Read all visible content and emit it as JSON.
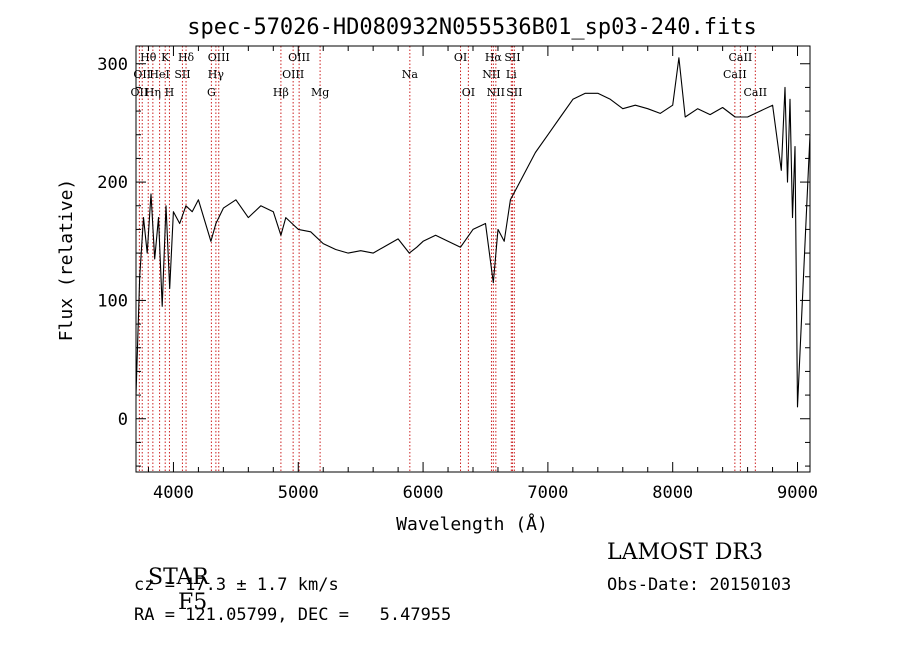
{
  "chart_data": {
    "type": "line",
    "title": "spec-57026-HD080932N055536B01_sp03-240.fits",
    "xlabel": "Wavelength (Å)",
    "ylabel": "Flux (relative)",
    "xlim": [
      3700,
      9100
    ],
    "ylim": [
      -45,
      315
    ],
    "xticks": [
      4000,
      5000,
      6000,
      7000,
      8000,
      9000
    ],
    "yticks": [
      0,
      100,
      200,
      300
    ],
    "grid": false,
    "series": [
      {
        "color": "#000000",
        "x": [
          3700,
          3730,
          3760,
          3790,
          3820,
          3850,
          3880,
          3910,
          3940,
          3970,
          4000,
          4050,
          4100,
          4150,
          4200,
          4300,
          4340,
          4400,
          4500,
          4600,
          4700,
          4800,
          4861,
          4900,
          5000,
          5100,
          5200,
          5300,
          5400,
          5500,
          5600,
          5700,
          5800,
          5890,
          5950,
          6000,
          6100,
          6200,
          6300,
          6400,
          6500,
          6563,
          6600,
          6650,
          6700,
          6750,
          6800,
          6900,
          7000,
          7100,
          7200,
          7300,
          7400,
          7500,
          7600,
          7700,
          7800,
          7900,
          8000,
          8050,
          8100,
          8200,
          8300,
          8400,
          8500,
          8600,
          8700,
          8800,
          8870,
          8900,
          8920,
          8940,
          8960,
          8980,
          9000,
          9100
        ],
        "y": [
          20,
          120,
          170,
          140,
          190,
          135,
          170,
          95,
          180,
          110,
          175,
          165,
          180,
          175,
          185,
          150,
          165,
          178,
          185,
          170,
          180,
          175,
          155,
          170,
          160,
          158,
          148,
          143,
          140,
          142,
          140,
          146,
          152,
          140,
          145,
          150,
          155,
          150,
          145,
          160,
          165,
          115,
          160,
          150,
          185,
          195,
          205,
          225,
          240,
          255,
          270,
          275,
          275,
          270,
          262,
          265,
          262,
          258,
          265,
          305,
          255,
          262,
          257,
          263,
          255,
          255,
          260,
          265,
          210,
          280,
          200,
          270,
          170,
          230,
          10,
          240
        ]
      }
    ],
    "lines": [
      {
        "x": 3727,
        "label": "OII",
        "row": 2
      },
      {
        "x": 3750,
        "label": "OII",
        "row": 1
      },
      {
        "x": 3798,
        "label": "Hθ",
        "row": 0
      },
      {
        "x": 3835,
        "label": "Hη",
        "row": 2
      },
      {
        "x": 3889,
        "label": "HeI",
        "row": 1
      },
      {
        "x": 3934,
        "label": "K",
        "row": 0
      },
      {
        "x": 3968,
        "label": "H",
        "row": 2
      },
      {
        "x": 4072,
        "label": "SII",
        "row": 1
      },
      {
        "x": 4101,
        "label": "Hδ",
        "row": 0
      },
      {
        "x": 4304,
        "label": "G",
        "row": 2
      },
      {
        "x": 4340,
        "label": "Hγ",
        "row": 1
      },
      {
        "x": 4363,
        "label": "OIII",
        "row": 0
      },
      {
        "x": 4861,
        "label": "Hβ",
        "row": 2
      },
      {
        "x": 4959,
        "label": "OIII",
        "row": 1
      },
      {
        "x": 5007,
        "label": "OIII",
        "row": 0
      },
      {
        "x": 5175,
        "label": "Mg",
        "row": 2
      },
      {
        "x": 5894,
        "label": "Na",
        "row": 1
      },
      {
        "x": 6300,
        "label": "OI",
        "row": 0
      },
      {
        "x": 6363,
        "label": "OI",
        "row": 2
      },
      {
        "x": 6548,
        "label": "NII",
        "row": 1
      },
      {
        "x": 6563,
        "label": "Hα",
        "row": 0
      },
      {
        "x": 6583,
        "label": "NII",
        "row": 2
      },
      {
        "x": 6707,
        "label": "Li",
        "row": 1
      },
      {
        "x": 6716,
        "label": "SII",
        "row": 0
      },
      {
        "x": 6731,
        "label": "SII",
        "row": 2
      },
      {
        "x": 8498,
        "label": "CaII",
        "row": 1
      },
      {
        "x": 8542,
        "label": "CaII",
        "row": 0
      },
      {
        "x": 8662,
        "label": "CaII",
        "row": 2
      }
    ]
  },
  "info": {
    "class_label": "STAR",
    "subclass": "F5",
    "survey": "LAMOST DR3",
    "cz": "cz = 17.3 ± 1.7 km/s",
    "obs_date": "Obs-Date: 20150103",
    "radec": "RA = 121.05799, DEC =   5.47955"
  }
}
